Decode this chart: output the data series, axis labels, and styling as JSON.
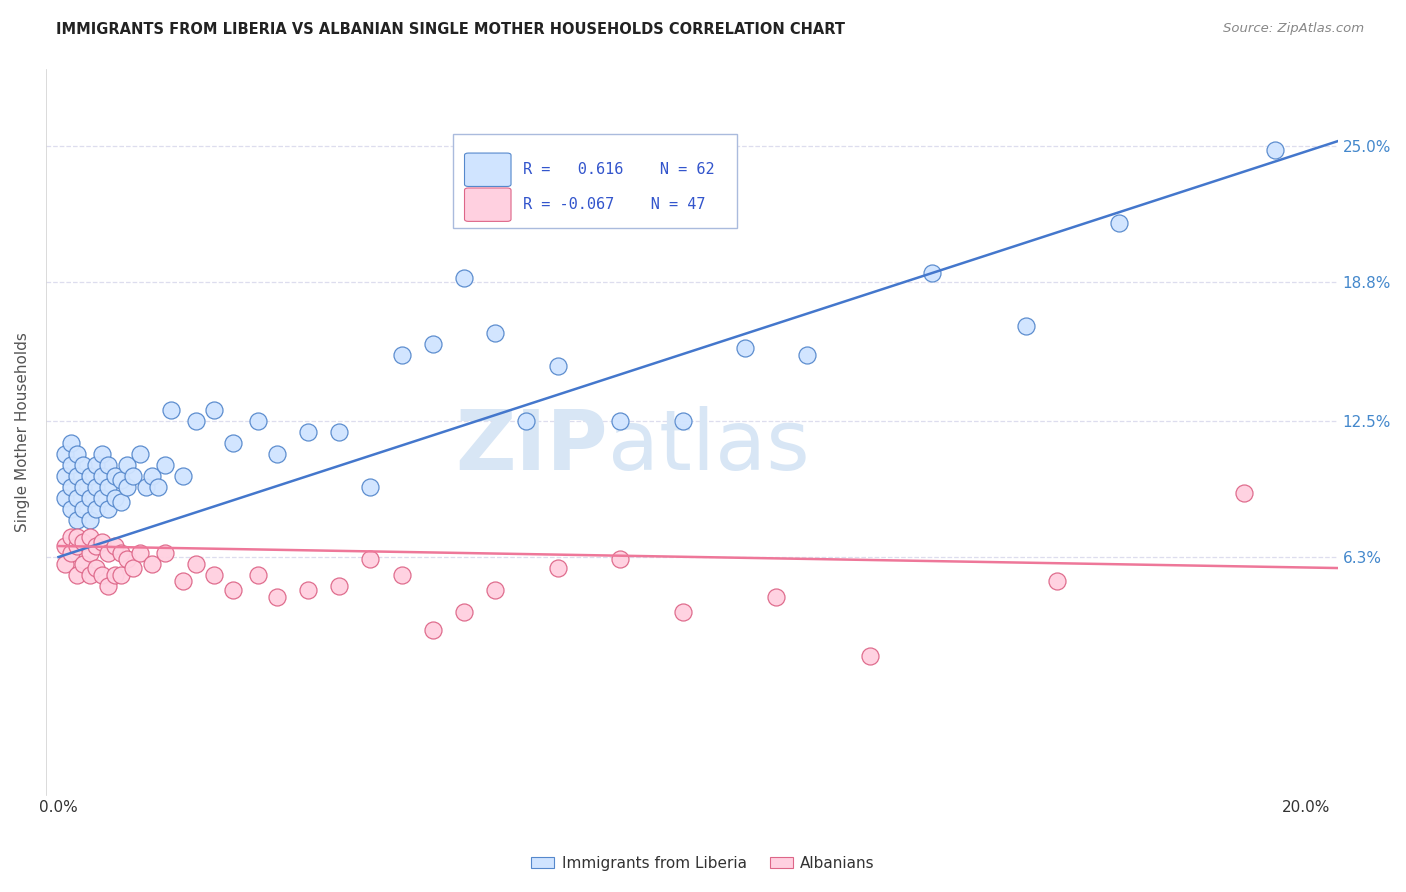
{
  "title": "IMMIGRANTS FROM LIBERIA VS ALBANIAN SINGLE MOTHER HOUSEHOLDS CORRELATION CHART",
  "source": "Source: ZipAtlas.com",
  "ylabel": "Single Mother Households",
  "xlim": [
    -0.002,
    0.205
  ],
  "ylim": [
    -0.045,
    0.285
  ],
  "yticks": [
    0.063,
    0.125,
    0.188,
    0.25
  ],
  "ytick_labels": [
    "6.3%",
    "12.5%",
    "18.8%",
    "25.0%"
  ],
  "xticks": [
    0.0,
    0.05,
    0.1,
    0.15,
    0.2
  ],
  "xtick_labels": [
    "0.0%",
    "",
    "",
    "",
    "20.0%"
  ],
  "blue_R": 0.616,
  "blue_N": 62,
  "pink_R": -0.067,
  "pink_N": 47,
  "blue_face": "#d0e4ff",
  "blue_edge": "#5588cc",
  "pink_face": "#ffd0e0",
  "pink_edge": "#dd6688",
  "blue_line": "#4477cc",
  "pink_line": "#ee7799",
  "watermark_color": "#d8e6f5",
  "grid_color": "#ddddee",
  "background": "#ffffff",
  "title_color": "#222222",
  "axis_label_color": "#555555",
  "ytick_color": "#4488cc",
  "xtick_color": "#333333",
  "source_color": "#888888",
  "legend_text_color": "#3355cc",
  "blue_x": [
    0.001,
    0.001,
    0.001,
    0.002,
    0.002,
    0.002,
    0.002,
    0.003,
    0.003,
    0.003,
    0.003,
    0.004,
    0.004,
    0.004,
    0.005,
    0.005,
    0.005,
    0.006,
    0.006,
    0.006,
    0.007,
    0.007,
    0.007,
    0.008,
    0.008,
    0.008,
    0.009,
    0.009,
    0.01,
    0.01,
    0.011,
    0.011,
    0.012,
    0.013,
    0.014,
    0.015,
    0.016,
    0.017,
    0.018,
    0.02,
    0.022,
    0.025,
    0.028,
    0.032,
    0.035,
    0.04,
    0.045,
    0.05,
    0.055,
    0.06,
    0.065,
    0.07,
    0.075,
    0.08,
    0.09,
    0.1,
    0.11,
    0.12,
    0.14,
    0.155,
    0.17,
    0.195
  ],
  "blue_y": [
    0.09,
    0.1,
    0.11,
    0.085,
    0.095,
    0.105,
    0.115,
    0.08,
    0.09,
    0.1,
    0.11,
    0.085,
    0.095,
    0.105,
    0.08,
    0.09,
    0.1,
    0.085,
    0.095,
    0.105,
    0.09,
    0.1,
    0.11,
    0.085,
    0.095,
    0.105,
    0.09,
    0.1,
    0.088,
    0.098,
    0.095,
    0.105,
    0.1,
    0.11,
    0.095,
    0.1,
    0.095,
    0.105,
    0.13,
    0.1,
    0.125,
    0.13,
    0.115,
    0.125,
    0.11,
    0.12,
    0.12,
    0.095,
    0.155,
    0.16,
    0.19,
    0.165,
    0.125,
    0.15,
    0.125,
    0.125,
    0.158,
    0.155,
    0.192,
    0.168,
    0.215,
    0.248
  ],
  "pink_x": [
    0.001,
    0.001,
    0.002,
    0.002,
    0.003,
    0.003,
    0.003,
    0.004,
    0.004,
    0.005,
    0.005,
    0.005,
    0.006,
    0.006,
    0.007,
    0.007,
    0.008,
    0.008,
    0.009,
    0.009,
    0.01,
    0.01,
    0.011,
    0.012,
    0.013,
    0.015,
    0.017,
    0.02,
    0.022,
    0.025,
    0.028,
    0.032,
    0.035,
    0.04,
    0.045,
    0.05,
    0.055,
    0.06,
    0.065,
    0.07,
    0.08,
    0.09,
    0.1,
    0.115,
    0.13,
    0.16,
    0.19
  ],
  "pink_y": [
    0.068,
    0.06,
    0.065,
    0.072,
    0.055,
    0.068,
    0.072,
    0.06,
    0.07,
    0.055,
    0.065,
    0.072,
    0.058,
    0.068,
    0.055,
    0.07,
    0.05,
    0.065,
    0.055,
    0.068,
    0.055,
    0.065,
    0.062,
    0.058,
    0.065,
    0.06,
    0.065,
    0.052,
    0.06,
    0.055,
    0.048,
    0.055,
    0.045,
    0.048,
    0.05,
    0.062,
    0.055,
    0.03,
    0.038,
    0.048,
    0.058,
    0.062,
    0.038,
    0.045,
    0.018,
    0.052,
    0.092
  ],
  "blue_line_x": [
    0.0,
    0.205
  ],
  "blue_line_y": [
    0.063,
    0.252
  ],
  "pink_line_x": [
    0.0,
    0.205
  ],
  "pink_line_y": [
    0.068,
    0.058
  ]
}
